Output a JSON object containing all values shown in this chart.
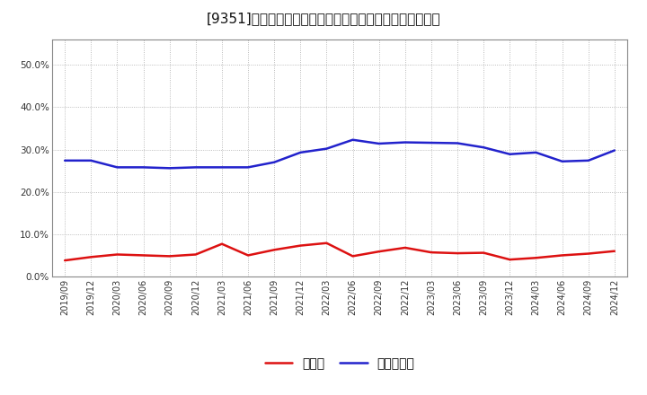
{
  "title": "[9351]　現預金、有利子負債の総資産に対する比率の推移",
  "x_labels": [
    "2019/09",
    "2019/12",
    "2020/03",
    "2020/06",
    "2020/09",
    "2020/12",
    "2021/03",
    "2021/06",
    "2021/09",
    "2021/12",
    "2022/03",
    "2022/06",
    "2022/09",
    "2022/12",
    "2023/03",
    "2023/06",
    "2023/09",
    "2023/12",
    "2024/03",
    "2024/06",
    "2024/09",
    "2024/12"
  ],
  "cash_values": [
    0.038,
    0.046,
    0.052,
    0.05,
    0.048,
    0.052,
    0.077,
    0.05,
    0.063,
    0.073,
    0.079,
    0.048,
    0.059,
    0.068,
    0.057,
    0.055,
    0.056,
    0.04,
    0.044,
    0.05,
    0.054,
    0.06
  ],
  "debt_values": [
    0.274,
    0.274,
    0.258,
    0.258,
    0.256,
    0.258,
    0.258,
    0.258,
    0.27,
    0.293,
    0.302,
    0.323,
    0.314,
    0.317,
    0.316,
    0.315,
    0.305,
    0.289,
    0.293,
    0.272,
    0.274,
    0.298
  ],
  "cash_color": "#dd1111",
  "debt_color": "#2222cc",
  "bg_color": "#ffffff",
  "plot_bg_color": "#ffffff",
  "grid_color": "#aaaaaa",
  "ylim": [
    0.0,
    0.56
  ],
  "yticks": [
    0.0,
    0.1,
    0.2,
    0.3,
    0.4,
    0.5
  ],
  "legend_cash": "現預金",
  "legend_debt": "有利子負債",
  "line_width": 1.8,
  "title_fontsize": 11,
  "tick_fontsize": 7,
  "legend_fontsize": 10
}
